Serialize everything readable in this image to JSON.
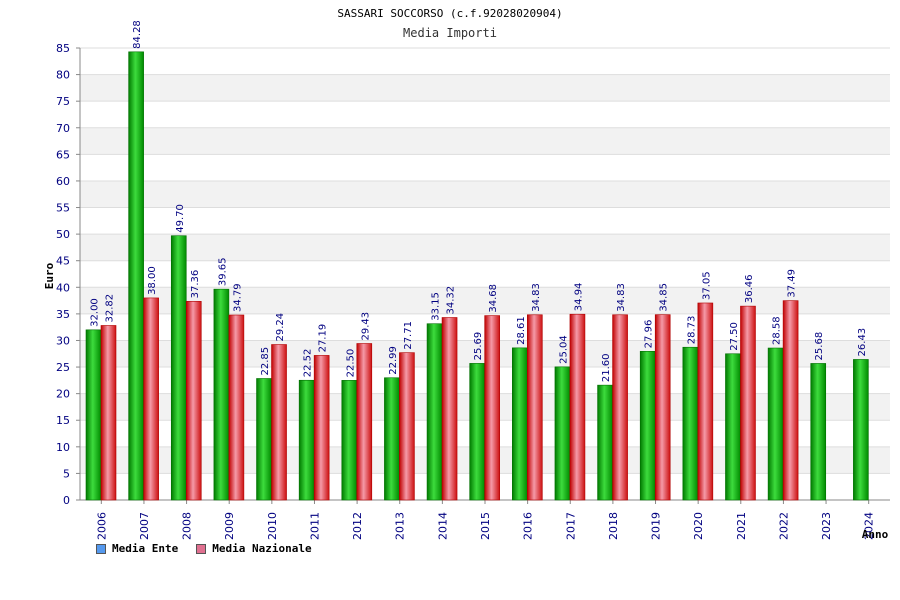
{
  "chart_data": {
    "type": "bar",
    "title": "SASSARI SOCCORSO (c.f.92028020904)",
    "subtitle": "Media Importi",
    "xlabel": "Anno",
    "ylabel": "Euro",
    "ylim": [
      0,
      85
    ],
    "ytick_step": 5,
    "categories": [
      "2006",
      "2007",
      "2008",
      "2009",
      "2010",
      "2011",
      "2012",
      "2013",
      "2014",
      "2015",
      "2016",
      "2017",
      "2018",
      "2019",
      "2020",
      "2021",
      "2022",
      "2023",
      "2024"
    ],
    "series": [
      {
        "name": "Media Ente",
        "color": "#00b000",
        "legend_color": "#5599ee",
        "values": [
          32.0,
          84.28,
          49.7,
          39.65,
          22.85,
          22.52,
          22.5,
          22.99,
          33.15,
          25.69,
          28.61,
          25.04,
          21.6,
          27.96,
          28.73,
          27.5,
          28.58,
          25.68,
          26.43
        ],
        "labels": [
          "32.00",
          "84.28",
          "49.70",
          "39.65",
          "22.85",
          "22.52",
          "22.50",
          "22.99",
          "33.15",
          "25.69",
          "28.61",
          "25.04",
          "21.60",
          "27.96",
          "28.73",
          "27.50",
          "28.58",
          "25.68",
          "26.43"
        ]
      },
      {
        "name": "Media Nazionale",
        "color": "#e02020",
        "legend_color": "#e07090",
        "values": [
          32.82,
          38.0,
          37.36,
          34.79,
          29.24,
          27.19,
          29.43,
          27.71,
          34.32,
          34.68,
          34.83,
          34.94,
          34.83,
          34.85,
          37.05,
          36.46,
          37.49,
          null,
          null
        ],
        "labels": [
          "32.82",
          "38.00",
          "37.36",
          "34.79",
          "29.24",
          "27.19",
          "29.43",
          "27.71",
          "34.32",
          "34.68",
          "34.83",
          "34.94",
          "34.83",
          "34.85",
          "37.05",
          "36.46",
          "37.49",
          null,
          null
        ]
      }
    ],
    "grid": true,
    "legend": "bottom-left"
  }
}
